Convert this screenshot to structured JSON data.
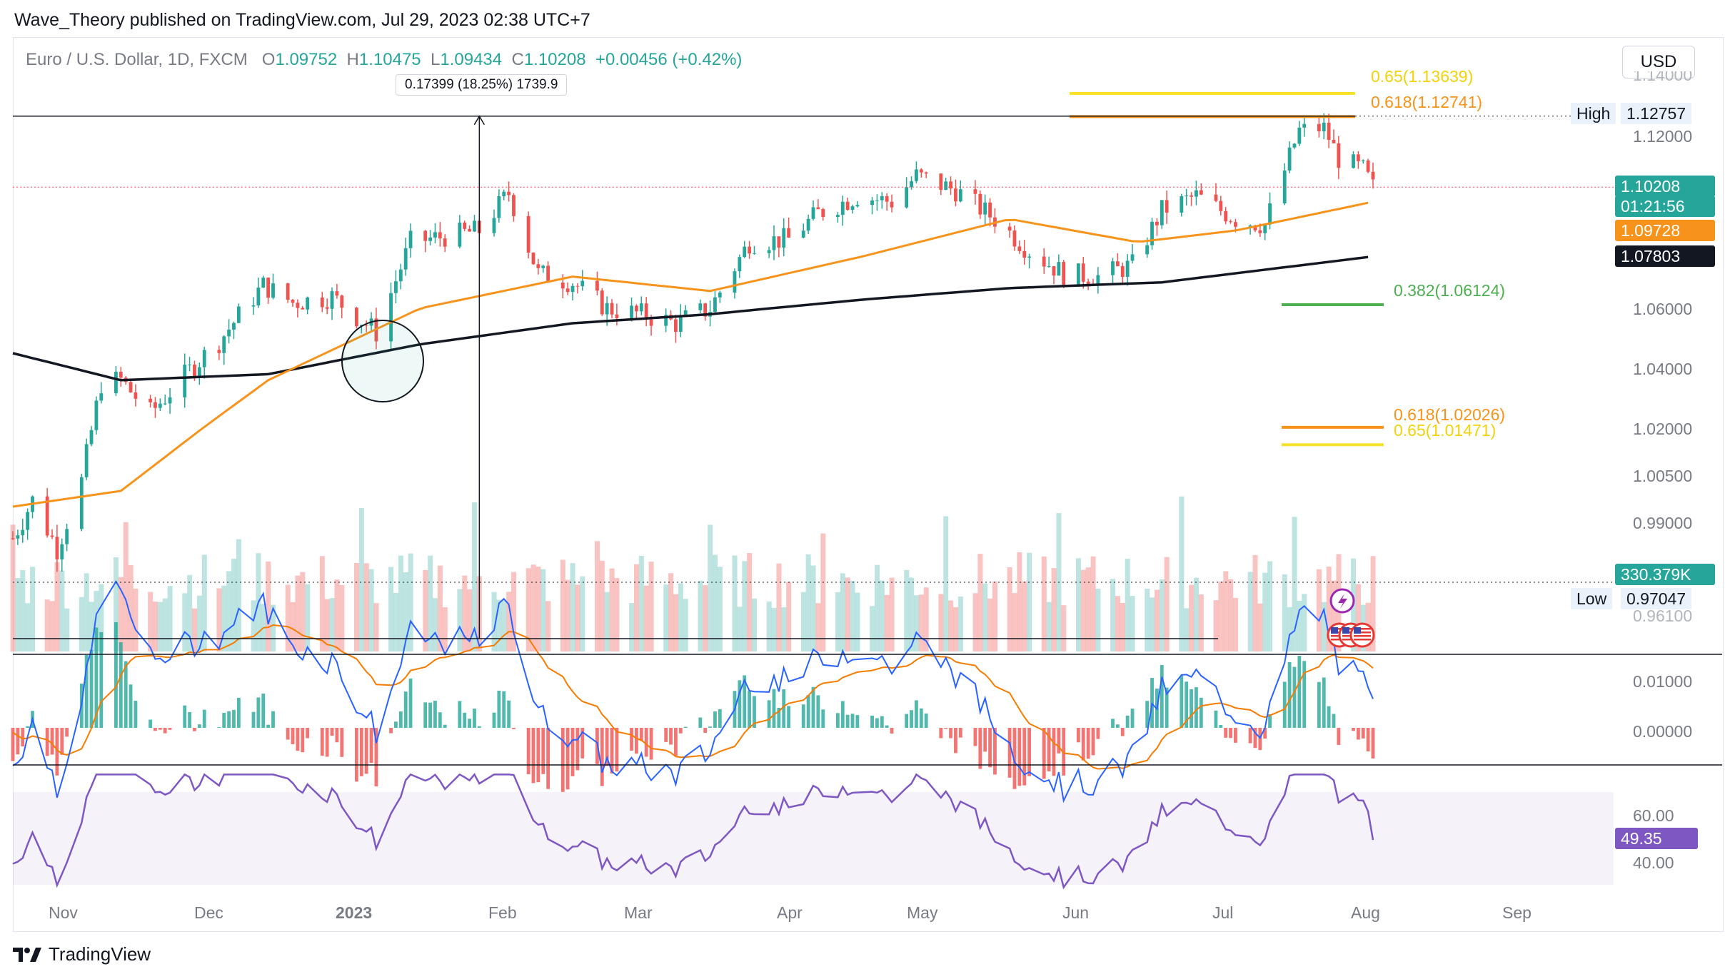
{
  "caption": "Wave_Theory published on TradingView.com, Jul 29, 2023 02:38 UTC+7",
  "header": {
    "pair": "Euro / U.S. Dollar, 1D, FXCM",
    "open_k": "O",
    "open": "1.09752",
    "high_k": "H",
    "high": "1.10475",
    "low_k": "L",
    "low": "1.09434",
    "close_k": "C",
    "close": "1.10208",
    "change": "+0.00456 (+0.42%)"
  },
  "measure_tooltip": "0.17399 (18.25%) 1739.9",
  "currency_button": "USD",
  "price_axis": {
    "ticks": [
      "1.12000",
      "1.06000",
      "1.04000",
      "1.02000",
      "1.00500",
      "0.99000",
      "0.96100"
    ],
    "top_partial": "1.14000",
    "high_label": "High",
    "high_value": "1.12757",
    "low_label": "Low",
    "low_value": "0.97047",
    "last_price": "1.10208",
    "countdown": "01:21:56",
    "ema50": "1.09728",
    "ema200": "1.07803",
    "volume": "330.379K"
  },
  "fib_labels": {
    "f065_top": "0.65(1.13639)",
    "f0618_top": "0.618(1.12741)",
    "f0382": "0.382(1.06124)",
    "f0618_bot": "0.618(1.02026)",
    "f065_bot": "0.65(1.01471)"
  },
  "macd_axis": {
    "t1": "0.01000",
    "t2": "0.00000"
  },
  "rsi_axis": {
    "t1": "60.00",
    "t2": "40.00",
    "value": "49.35"
  },
  "time_axis": [
    "Nov",
    "Dec",
    "2023",
    "Feb",
    "Mar",
    "Apr",
    "May",
    "Jun",
    "Jul",
    "Aug",
    "Sep"
  ],
  "brand": "TradingView",
  "colors": {
    "up": "#26a69a",
    "down": "#ef5350",
    "ema50": "#f7931a",
    "ema200": "#131722",
    "fib_gold": "#f7e12a",
    "fib_orange": "#f7931a",
    "fib_green": "#4caf50",
    "macd": "#2962ff",
    "signal": "#f57c00",
    "rsi": "#7e57c2"
  },
  "chart_data": {
    "type": "candlestick",
    "symbol": "EURUSD",
    "timeframe": "1D",
    "x_range": [
      "2022-10-24",
      "2023-09-15"
    ],
    "ylim": [
      0.955,
      1.145
    ],
    "close_path_approx": [
      [
        "2022-10-24",
        0.985
      ],
      [
        "2022-10-28",
        0.997
      ],
      [
        "2022-11-02",
        0.982
      ],
      [
        "2022-11-07",
        1.003
      ],
      [
        "2022-11-11",
        1.035
      ],
      [
        "2022-11-15",
        1.036
      ],
      [
        "2022-11-21",
        1.025
      ],
      [
        "2022-11-30",
        1.041
      ],
      [
        "2022-12-05",
        1.049
      ],
      [
        "2022-12-14",
        1.068
      ],
      [
        "2022-12-20",
        1.062
      ],
      [
        "2022-12-28",
        1.064
      ],
      [
        "2023-01-06",
        1.052
      ],
      [
        "2023-01-13",
        1.083
      ],
      [
        "2023-01-20",
        1.085
      ],
      [
        "2023-01-27",
        1.087
      ],
      [
        "2023-02-02",
        1.1
      ],
      [
        "2023-02-08",
        1.072
      ],
      [
        "2023-02-15",
        1.069
      ],
      [
        "2023-02-22",
        1.06
      ],
      [
        "2023-03-01",
        1.058
      ],
      [
        "2023-03-08",
        1.055
      ],
      [
        "2023-03-15",
        1.06
      ],
      [
        "2023-03-23",
        1.083
      ],
      [
        "2023-03-31",
        1.084
      ],
      [
        "2023-04-06",
        1.093
      ],
      [
        "2023-04-14",
        1.099
      ],
      [
        "2023-04-21",
        1.097
      ],
      [
        "2023-04-26",
        1.106
      ],
      [
        "2023-05-04",
        1.101
      ],
      [
        "2023-05-12",
        1.091
      ],
      [
        "2023-05-19",
        1.08
      ],
      [
        "2023-05-26",
        1.072
      ],
      [
        "2023-06-02",
        1.071
      ],
      [
        "2023-06-09",
        1.075
      ],
      [
        "2023-06-15",
        1.094
      ],
      [
        "2023-06-22",
        1.099
      ],
      [
        "2023-06-30",
        1.091
      ],
      [
        "2023-07-06",
        1.089
      ],
      [
        "2023-07-13",
        1.122
      ],
      [
        "2023-07-18",
        1.123
      ],
      [
        "2023-07-21",
        1.112
      ],
      [
        "2023-07-26",
        1.108
      ],
      [
        "2023-07-28",
        1.102
      ]
    ],
    "ema50_approx": [
      [
        "2022-10-24",
        0.995
      ],
      [
        "2022-11-15",
        1.0
      ],
      [
        "2022-12-15",
        1.036
      ],
      [
        "2023-01-15",
        1.06
      ],
      [
        "2023-02-15",
        1.071
      ],
      [
        "2023-03-15",
        1.066
      ],
      [
        "2023-04-15",
        1.078
      ],
      [
        "2023-05-15",
        1.091
      ],
      [
        "2023-06-10",
        1.083
      ],
      [
        "2023-06-30",
        1.087
      ],
      [
        "2023-07-28",
        1.097
      ]
    ],
    "ema200_approx": [
      [
        "2022-10-24",
        1.045
      ],
      [
        "2022-11-15",
        1.036
      ],
      [
        "2022-12-15",
        1.038
      ],
      [
        "2023-01-15",
        1.048
      ],
      [
        "2023-02-15",
        1.055
      ],
      [
        "2023-03-15",
        1.058
      ],
      [
        "2023-04-15",
        1.063
      ],
      [
        "2023-05-15",
        1.067
      ],
      [
        "2023-06-15",
        1.069
      ],
      [
        "2023-07-28",
        1.078
      ]
    ],
    "fib_levels": [
      {
        "label": "0.65",
        "value": 1.13639
      },
      {
        "label": "0.618",
        "value": 1.12741
      },
      {
        "label": "0.382",
        "value": 1.06124
      },
      {
        "label": "0.618",
        "value": 1.02026
      },
      {
        "label": "0.65",
        "value": 1.01471
      }
    ],
    "rsi_last": 49.35,
    "volume_last": "330.379K"
  }
}
